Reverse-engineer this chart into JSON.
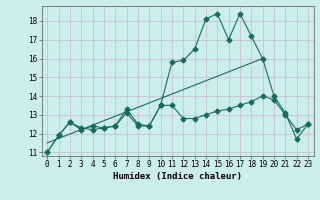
{
  "title": "",
  "xlabel": "Humidex (Indice chaleur)",
  "xlim": [
    -0.5,
    23.5
  ],
  "ylim": [
    10.8,
    18.8
  ],
  "yticks": [
    11,
    12,
    13,
    14,
    15,
    16,
    17,
    18
  ],
  "xticks": [
    0,
    1,
    2,
    3,
    4,
    5,
    6,
    7,
    8,
    9,
    10,
    11,
    12,
    13,
    14,
    15,
    16,
    17,
    18,
    19,
    20,
    21,
    22,
    23
  ],
  "background_color": "#cceee8",
  "grid_color": "#c8b8cc",
  "line_color": "#1a6b5e",
  "line1_x": [
    0,
    1,
    2,
    3,
    4,
    5,
    6,
    7,
    8,
    9,
    10,
    11,
    12,
    13,
    14,
    15,
    16,
    17,
    18,
    19,
    20,
    21,
    22,
    23
  ],
  "line1_y": [
    11.0,
    11.9,
    12.6,
    12.2,
    12.4,
    12.3,
    12.4,
    13.3,
    12.5,
    12.4,
    13.5,
    15.8,
    15.9,
    16.5,
    18.1,
    18.4,
    17.0,
    18.4,
    17.2,
    16.0,
    14.0,
    13.1,
    11.7,
    12.5
  ],
  "line2_x": [
    0,
    1,
    2,
    3,
    4,
    5,
    6,
    7,
    8,
    9,
    10,
    11,
    12,
    13,
    14,
    15,
    16,
    17,
    18,
    19,
    20,
    21,
    22,
    23
  ],
  "line2_y": [
    11.0,
    11.9,
    12.6,
    12.3,
    12.2,
    12.3,
    12.4,
    13.1,
    12.4,
    12.4,
    13.5,
    13.5,
    12.8,
    12.8,
    13.0,
    13.2,
    13.3,
    13.5,
    13.7,
    14.0,
    13.8,
    13.0,
    12.2,
    12.5
  ],
  "line3_x": [
    0,
    19
  ],
  "line3_y": [
    11.5,
    16.0
  ],
  "marker_size": 2.5,
  "linewidth": 0.8,
  "tick_fontsize": 5.5,
  "xlabel_fontsize": 6.5,
  "fig_width": 3.2,
  "fig_height": 2.0,
  "dpi": 100
}
